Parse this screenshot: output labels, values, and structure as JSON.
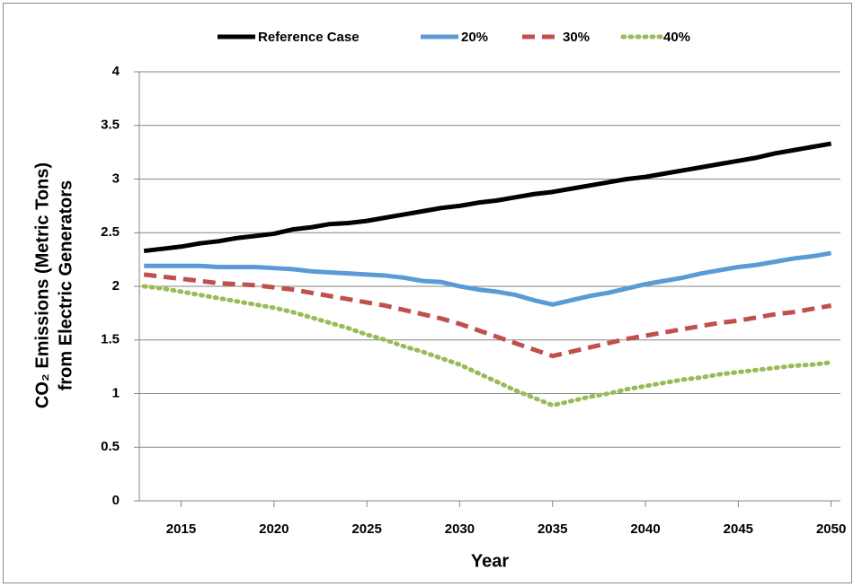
{
  "chart_data": {
    "type": "line",
    "xlabel": "Year",
    "ylabel": [
      "CO₂ Emissions (Metric Tons)",
      "from Electric Generators"
    ],
    "x": [
      2013,
      2014,
      2015,
      2016,
      2017,
      2018,
      2019,
      2020,
      2021,
      2022,
      2023,
      2024,
      2025,
      2026,
      2027,
      2028,
      2029,
      2030,
      2031,
      2032,
      2033,
      2034,
      2035,
      2036,
      2037,
      2038,
      2039,
      2040,
      2041,
      2042,
      2043,
      2044,
      2045,
      2046,
      2047,
      2048,
      2049,
      2050
    ],
    "xlim": [
      2012.75,
      2050.5
    ],
    "xticks": [
      2015,
      2020,
      2025,
      2030,
      2035,
      2040,
      2045,
      2050
    ],
    "ylim": [
      0,
      4
    ],
    "yticks": [
      0,
      0.5,
      1,
      1.5,
      2,
      2.5,
      3,
      3.5,
      4
    ],
    "grid": true,
    "legend": "top",
    "series": [
      {
        "name": "Reference Case",
        "color": "#000000",
        "dash": "solid",
        "values": [
          2.33,
          2.35,
          2.37,
          2.4,
          2.42,
          2.45,
          2.47,
          2.49,
          2.53,
          2.55,
          2.58,
          2.59,
          2.61,
          2.64,
          2.67,
          2.7,
          2.73,
          2.75,
          2.78,
          2.8,
          2.83,
          2.86,
          2.88,
          2.91,
          2.94,
          2.97,
          3.0,
          3.02,
          3.05,
          3.08,
          3.11,
          3.14,
          3.17,
          3.2,
          3.24,
          3.27,
          3.3,
          3.33
        ]
      },
      {
        "name": "20%",
        "color": "#5b9bd5",
        "dash": "solid",
        "values": [
          2.19,
          2.19,
          2.19,
          2.19,
          2.18,
          2.18,
          2.18,
          2.17,
          2.16,
          2.14,
          2.13,
          2.12,
          2.11,
          2.1,
          2.08,
          2.05,
          2.04,
          2.0,
          1.97,
          1.95,
          1.92,
          1.87,
          1.83,
          1.87,
          1.91,
          1.94,
          1.98,
          2.02,
          2.05,
          2.08,
          2.12,
          2.15,
          2.18,
          2.2,
          2.23,
          2.26,
          2.28,
          2.31
        ]
      },
      {
        "name": "30%",
        "color": "#c0504d",
        "dash": "dash",
        "values": [
          2.11,
          2.09,
          2.07,
          2.05,
          2.03,
          2.02,
          2.01,
          1.99,
          1.97,
          1.94,
          1.91,
          1.88,
          1.85,
          1.82,
          1.78,
          1.74,
          1.7,
          1.65,
          1.59,
          1.53,
          1.47,
          1.41,
          1.35,
          1.39,
          1.43,
          1.47,
          1.51,
          1.54,
          1.57,
          1.6,
          1.63,
          1.66,
          1.68,
          1.71,
          1.74,
          1.76,
          1.79,
          1.82
        ]
      },
      {
        "name": "40%",
        "color": "#9bbb59",
        "dash": "dot",
        "values": [
          2.0,
          1.98,
          1.95,
          1.92,
          1.89,
          1.86,
          1.83,
          1.8,
          1.76,
          1.71,
          1.66,
          1.61,
          1.55,
          1.5,
          1.44,
          1.39,
          1.33,
          1.27,
          1.19,
          1.11,
          1.03,
          0.96,
          0.89,
          0.93,
          0.97,
          1.0,
          1.04,
          1.07,
          1.1,
          1.13,
          1.15,
          1.18,
          1.2,
          1.22,
          1.24,
          1.26,
          1.27,
          1.29
        ]
      }
    ]
  }
}
